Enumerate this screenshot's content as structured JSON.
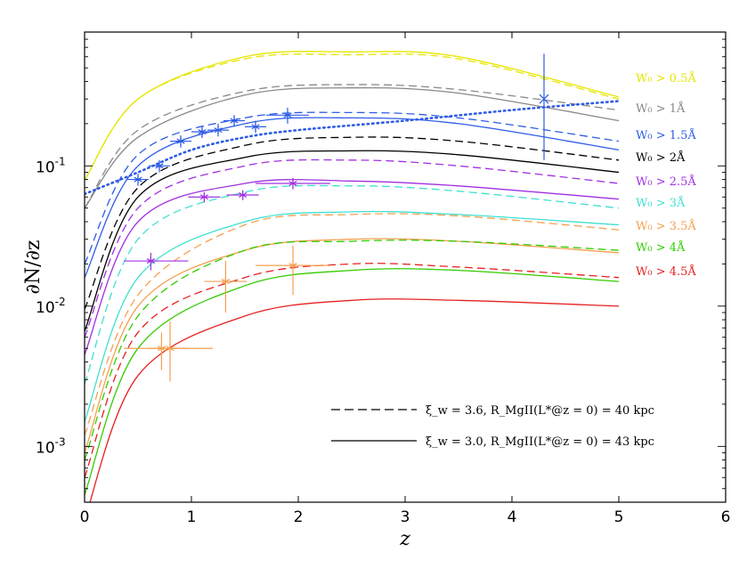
{
  "chart_data": {
    "type": "line",
    "xlabel": "z",
    "ylabel": "∂N/∂z",
    "x_range": [
      0,
      6
    ],
    "y_range": [
      0.0004,
      0.9
    ],
    "y_scale": "log",
    "x_ticks": [
      "0",
      "1",
      "2",
      "3",
      "4",
      "5",
      "6"
    ],
    "y_ticks": [
      {
        "value": 0.1,
        "mantissa": "10",
        "exp": "-1"
      },
      {
        "value": 0.01,
        "mantissa": "10",
        "exp": "-2"
      },
      {
        "value": 0.001,
        "mantissa": "10",
        "exp": "-3"
      }
    ],
    "grid": false,
    "series": [
      {
        "label": "W₀ > 0.5Å",
        "color": "#e6e600",
        "solid_anchor": [
          0.079,
          0.3,
          0.6,
          0.65,
          0.6,
          0.31
        ],
        "dashed_anchor": [
          0.079,
          0.3,
          0.58,
          0.62,
          0.58,
          0.3
        ]
      },
      {
        "label": "W₀ > 1Å",
        "color": "#888888",
        "solid_anchor": [
          0.05,
          0.16,
          0.32,
          0.36,
          0.33,
          0.21
        ],
        "dashed_anchor": [
          0.05,
          0.18,
          0.34,
          0.38,
          0.35,
          0.25
        ]
      },
      {
        "label": "W₀ > 1.5Å",
        "color": "#2e5ce6",
        "solid_anchor": [
          0.016,
          0.1,
          0.2,
          0.22,
          0.2,
          0.13
        ],
        "dashed_anchor": [
          0.02,
          0.12,
          0.22,
          0.24,
          0.22,
          0.15
        ]
      },
      {
        "label": "W₀ > 2Å",
        "color": "#000000",
        "solid_anchor": [
          0.0066,
          0.06,
          0.115,
          0.128,
          0.12,
          0.09
        ],
        "dashed_anchor": [
          0.0095,
          0.07,
          0.14,
          0.16,
          0.15,
          0.11
        ]
      },
      {
        "label": "W₀ > 2.5Å",
        "color": "#a030e0",
        "solid_anchor": [
          0.0045,
          0.04,
          0.075,
          0.078,
          0.072,
          0.058
        ],
        "dashed_anchor": [
          0.006,
          0.05,
          0.1,
          0.11,
          0.1,
          0.075
        ]
      },
      {
        "label": "W₀ > 3Å",
        "color": "#40e0d0",
        "solid_anchor": [
          0.0015,
          0.016,
          0.04,
          0.047,
          0.045,
          0.038
        ],
        "dashed_anchor": [
          0.0028,
          0.03,
          0.065,
          0.072,
          0.066,
          0.05
        ]
      },
      {
        "label": "W₀ > 3.5Å",
        "color": "#f5a050",
        "solid_anchor": [
          0.0009,
          0.01,
          0.025,
          0.03,
          0.029,
          0.024
        ],
        "dashed_anchor": [
          0.0012,
          0.012,
          0.038,
          0.045,
          0.044,
          0.035
        ]
      },
      {
        "label": "W₀ > 4Å",
        "color": "#33cc00",
        "solid_anchor": [
          0.00045,
          0.005,
          0.014,
          0.018,
          0.018,
          0.015
        ],
        "dashed_anchor": [
          0.0008,
          0.0085,
          0.025,
          0.029,
          0.029,
          0.025
        ]
      },
      {
        "label": "W₀ > 4.5Å",
        "color": "#e62020",
        "solid_anchor": [
          0.0003,
          0.0032,
          0.0085,
          0.011,
          0.011,
          0.01
        ],
        "dashed_anchor": [
          0.0006,
          0.0065,
          0.016,
          0.02,
          0.019,
          0.016
        ]
      }
    ],
    "model_x": [
      0,
      0.5,
      1.5,
      2.5,
      3.5,
      5
    ],
    "dotted_blue": {
      "x": [
        0,
        0.5,
        1.0,
        1.5,
        2.0,
        3.0,
        4.0,
        5.0
      ],
      "y": [
        0.063,
        0.09,
        0.13,
        0.16,
        0.18,
        0.21,
        0.25,
        0.29
      ]
    },
    "observations": [
      {
        "color": "#2e5ce6",
        "points": [
          {
            "x": 0.5,
            "y": 0.08,
            "xerr": 0.1,
            "yerr": [
              0.072,
              0.088
            ]
          },
          {
            "x": 0.7,
            "y": 0.1,
            "xerr": 0.1,
            "yerr": [
              0.09,
              0.11
            ]
          },
          {
            "x": 0.9,
            "y": 0.15,
            "xerr": 0.1,
            "yerr": [
              0.135,
              0.165
            ]
          },
          {
            "x": 1.1,
            "y": 0.175,
            "xerr": 0.1,
            "yerr": [
              0.158,
              0.19
            ]
          },
          {
            "x": 1.25,
            "y": 0.18,
            "xerr": 0.1,
            "yerr": [
              0.162,
              0.2
            ]
          },
          {
            "x": 1.4,
            "y": 0.21,
            "xerr": 0.1,
            "yerr": [
              0.19,
              0.23
            ]
          },
          {
            "x": 1.6,
            "y": 0.19,
            "xerr": 0.1,
            "yerr": [
              0.172,
              0.21
            ]
          },
          {
            "x": 1.9,
            "y": 0.23,
            "xerr": 0.2,
            "yerr": [
              0.2,
              0.26
            ]
          },
          {
            "x": 4.3,
            "y": 0.3,
            "xerr": 0.0,
            "yerr": [
              0.11,
              0.63
            ]
          }
        ]
      },
      {
        "color": "#a030e0",
        "points": [
          {
            "x": 0.62,
            "y": 0.021,
            "xerr": [
              0.25,
              0.35
            ],
            "yerr": [
              0.018,
              0.024
            ]
          },
          {
            "x": 1.12,
            "y": 0.06,
            "xerr": 0.15,
            "yerr": [
              0.055,
              0.065
            ]
          },
          {
            "x": 1.48,
            "y": 0.062,
            "xerr": 0.15,
            "yerr": [
              0.057,
              0.067
            ]
          },
          {
            "x": 1.95,
            "y": 0.075,
            "xerr": 0.35,
            "yerr": [
              0.068,
              0.082
            ]
          }
        ]
      },
      {
        "color": "#f5a050",
        "points": [
          {
            "x": 0.72,
            "y": 0.005,
            "xerr": [
              0.35,
              0.25
            ],
            "yerr": [
              0.0035,
              0.0065
            ]
          },
          {
            "x": 0.8,
            "y": 0.005,
            "xerr": [
              0.2,
              0.4
            ],
            "yerr": [
              0.0029,
              0.0078
            ]
          },
          {
            "x": 1.32,
            "y": 0.015,
            "xerr": 0.2,
            "yerr": [
              0.009,
              0.021
            ]
          },
          {
            "x": 1.95,
            "y": 0.0195,
            "xerr": 0.35,
            "yerr": [
              0.012,
              0.027
            ]
          }
        ]
      }
    ],
    "legend": {
      "placement": "bottom-right",
      "entries": [
        {
          "style": "dashed",
          "label": "ξ_w = 3.6,  R_MgII(L*@z = 0) = 40 kpc"
        },
        {
          "style": "solid",
          "label": "ξ_w = 3.0,  R_MgII(L*@z = 0) = 43 kpc"
        }
      ]
    }
  }
}
